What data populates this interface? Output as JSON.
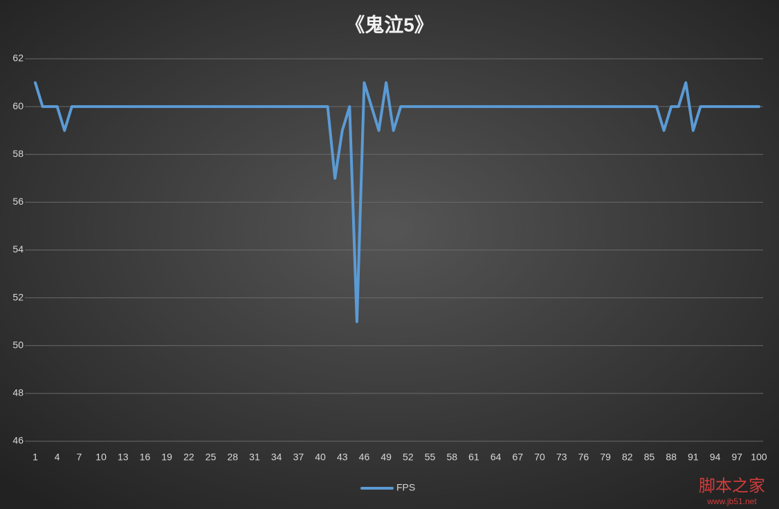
{
  "chart_data": {
    "type": "line",
    "title": "《鬼泣5》",
    "x": [
      1,
      2,
      3,
      4,
      5,
      6,
      7,
      8,
      9,
      10,
      11,
      12,
      13,
      14,
      15,
      16,
      17,
      18,
      19,
      20,
      21,
      22,
      23,
      24,
      25,
      26,
      27,
      28,
      29,
      30,
      31,
      32,
      33,
      34,
      35,
      36,
      37,
      38,
      39,
      40,
      41,
      42,
      43,
      44,
      45,
      46,
      47,
      48,
      49,
      50,
      51,
      52,
      53,
      54,
      55,
      56,
      57,
      58,
      59,
      60,
      61,
      62,
      63,
      64,
      65,
      66,
      67,
      68,
      69,
      70,
      71,
      72,
      73,
      74,
      75,
      76,
      77,
      78,
      79,
      80,
      81,
      82,
      83,
      84,
      85,
      86,
      87,
      88,
      89,
      90,
      91,
      92,
      93,
      94,
      95,
      96,
      97,
      98,
      99,
      100
    ],
    "series": [
      {
        "name": "FPS",
        "color": "#5b9bd5",
        "values": [
          61,
          60,
          60,
          60,
          59,
          60,
          60,
          60,
          60,
          60,
          60,
          60,
          60,
          60,
          60,
          60,
          60,
          60,
          60,
          60,
          60,
          60,
          60,
          60,
          60,
          60,
          60,
          60,
          60,
          60,
          60,
          60,
          60,
          60,
          60,
          60,
          60,
          60,
          60,
          60,
          60,
          57,
          59,
          60,
          51,
          61,
          60,
          59,
          61,
          59,
          60,
          60,
          60,
          60,
          60,
          60,
          60,
          60,
          60,
          60,
          60,
          60,
          60,
          60,
          60,
          60,
          60,
          60,
          60,
          60,
          60,
          60,
          60,
          60,
          60,
          60,
          60,
          60,
          60,
          60,
          60,
          60,
          60,
          60,
          60,
          60,
          59,
          60,
          60,
          61,
          59,
          60,
          60,
          60,
          60,
          60,
          60,
          60,
          60,
          60
        ]
      }
    ],
    "xlim": [
      1,
      100
    ],
    "xticks": [
      1,
      4,
      7,
      10,
      13,
      16,
      19,
      22,
      25,
      28,
      31,
      34,
      37,
      40,
      43,
      46,
      49,
      52,
      55,
      58,
      61,
      64,
      67,
      70,
      73,
      76,
      79,
      82,
      85,
      88,
      91,
      94,
      97,
      100
    ],
    "ylim": [
      46,
      62
    ],
    "yticks": [
      46,
      48,
      50,
      52,
      54,
      56,
      58,
      60,
      62
    ],
    "grid": true,
    "legend": "bottom"
  },
  "watermark": {
    "name": "脚本之家",
    "url": "www.jb51.net"
  }
}
